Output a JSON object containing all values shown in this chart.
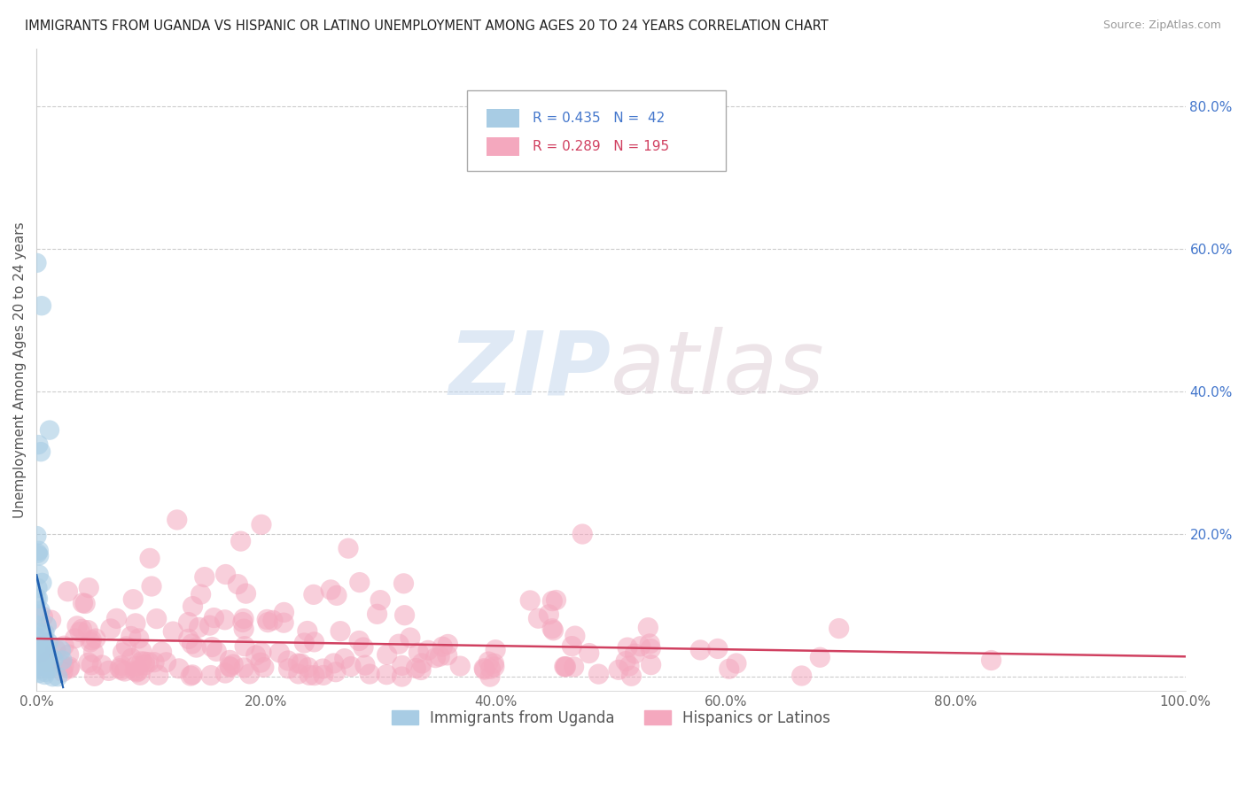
{
  "title": "IMMIGRANTS FROM UGANDA VS HISPANIC OR LATINO UNEMPLOYMENT AMONG AGES 20 TO 24 YEARS CORRELATION CHART",
  "source": "Source: ZipAtlas.com",
  "ylabel": "Unemployment Among Ages 20 to 24 years",
  "xlim": [
    0,
    1.0
  ],
  "ylim": [
    -0.02,
    0.88
  ],
  "xticks": [
    0,
    0.2,
    0.4,
    0.6,
    0.8,
    1.0
  ],
  "xticklabels": [
    "0.0%",
    "20.0%",
    "40.0%",
    "60.0%",
    "80.0%",
    "100.0%"
  ],
  "ytick_positions": [
    0.0,
    0.2,
    0.4,
    0.6,
    0.8
  ],
  "yticklabels": [
    "",
    "20.0%",
    "40.0%",
    "60.0%",
    "80.0%"
  ],
  "legend_r1": "R = 0.435",
  "legend_n1": "N =  42",
  "legend_r2": "R = 0.289",
  "legend_n2": "N = 195",
  "blue_color": "#a8cce4",
  "pink_color": "#f4a8be",
  "blue_line_color": "#2060b0",
  "pink_line_color": "#d04060",
  "watermark_zip": "ZIP",
  "watermark_atlas": "atlas",
  "background_color": "#ffffff",
  "grid_color": "#cccccc",
  "ytick_color": "#4477cc",
  "xtick_color": "#666666"
}
